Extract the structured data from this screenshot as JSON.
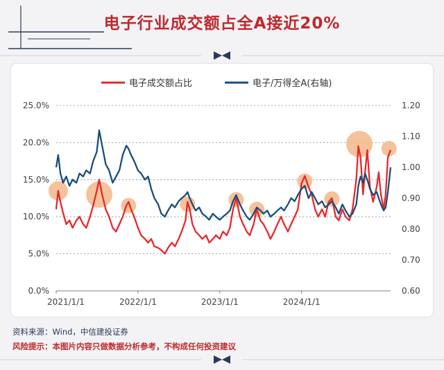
{
  "header": {
    "title": "电子行业成交额占全A接近20%"
  },
  "footer": {
    "source": "资料来源：Wind，中信建投证券",
    "risk": "风险提示：本图片内容只做数据分析参考，不构成任何投资建议"
  },
  "colors": {
    "red": "#e8272a",
    "blue": "#184d7c",
    "highlight": "#f2b98a",
    "brand": "#c0282d",
    "navy": "#2a3a5c"
  },
  "icons": [
    "bowtie-icon"
  ],
  "chart_data": {
    "type": "line",
    "title": "",
    "xlabel": "",
    "ylabel": "",
    "x_ticks": [
      "2021/1/1",
      "2022/1/1",
      "2023/1/1",
      "2024/1/1"
    ],
    "left_axis": {
      "ylim": [
        0,
        25
      ],
      "ticks": [
        "0.0%",
        "5.0%",
        "10.0%",
        "15.0%",
        "20.0%",
        "25.0%"
      ]
    },
    "right_axis": {
      "ylim": [
        0.6,
        1.2
      ],
      "ticks": [
        "0.60",
        "0.70",
        "0.80",
        "0.90",
        "1.00",
        "1.10",
        "1.20"
      ]
    },
    "grid": "dotted horizontal",
    "legend": "top",
    "series": [
      {
        "name": "电子成交额占比",
        "axis": "left",
        "color": "#e8272a",
        "points": [
          [
            "2021-01-01",
            11.0
          ],
          [
            "2021-01-10",
            13.5
          ],
          [
            "2021-01-20",
            12.0
          ],
          [
            "2021-02-01",
            10.5
          ],
          [
            "2021-02-15",
            9.0
          ],
          [
            "2021-03-01",
            9.5
          ],
          [
            "2021-03-15",
            8.5
          ],
          [
            "2021-04-01",
            9.5
          ],
          [
            "2021-04-15",
            10.0
          ],
          [
            "2021-05-01",
            9.0
          ],
          [
            "2021-05-15",
            8.5
          ],
          [
            "2021-06-01",
            10.0
          ],
          [
            "2021-06-15",
            11.5
          ],
          [
            "2021-07-01",
            13.5
          ],
          [
            "2021-07-12",
            15.0
          ],
          [
            "2021-07-25",
            13.0
          ],
          [
            "2021-08-10",
            11.0
          ],
          [
            "2021-08-25",
            10.0
          ],
          [
            "2021-09-10",
            8.5
          ],
          [
            "2021-09-25",
            8.0
          ],
          [
            "2021-10-10",
            9.0
          ],
          [
            "2021-10-25",
            10.0
          ],
          [
            "2021-11-10",
            11.5
          ],
          [
            "2021-11-20",
            12.0
          ],
          [
            "2021-12-01",
            11.0
          ],
          [
            "2021-12-15",
            10.0
          ],
          [
            "2022-01-01",
            8.5
          ],
          [
            "2022-01-15",
            7.5
          ],
          [
            "2022-02-01",
            7.0
          ],
          [
            "2022-02-15",
            6.5
          ],
          [
            "2022-03-01",
            7.0
          ],
          [
            "2022-03-15",
            6.0
          ],
          [
            "2022-04-01",
            5.8
          ],
          [
            "2022-04-15",
            5.5
          ],
          [
            "2022-05-01",
            5.0
          ],
          [
            "2022-05-15",
            5.8
          ],
          [
            "2022-06-01",
            6.5
          ],
          [
            "2022-06-15",
            6.0
          ],
          [
            "2022-07-01",
            7.0
          ],
          [
            "2022-07-15",
            8.0
          ],
          [
            "2022-08-01",
            9.5
          ],
          [
            "2022-08-10",
            12.0
          ],
          [
            "2022-08-20",
            11.0
          ],
          [
            "2022-09-01",
            9.0
          ],
          [
            "2022-09-15",
            8.0
          ],
          [
            "2022-10-01",
            7.5
          ],
          [
            "2022-10-15",
            7.0
          ],
          [
            "2022-11-01",
            7.5
          ],
          [
            "2022-11-15",
            6.5
          ],
          [
            "2022-12-01",
            7.0
          ],
          [
            "2022-12-15",
            7.5
          ],
          [
            "2023-01-01",
            7.0
          ],
          [
            "2023-01-15",
            8.0
          ],
          [
            "2023-02-01",
            7.5
          ],
          [
            "2023-02-15",
            8.5
          ],
          [
            "2023-03-01",
            11.0
          ],
          [
            "2023-03-15",
            12.5
          ],
          [
            "2023-04-01",
            10.0
          ],
          [
            "2023-04-15",
            9.0
          ],
          [
            "2023-05-01",
            8.0
          ],
          [
            "2023-05-15",
            7.5
          ],
          [
            "2023-06-01",
            9.0
          ],
          [
            "2023-06-15",
            11.0
          ],
          [
            "2023-07-01",
            9.5
          ],
          [
            "2023-07-15",
            9.0
          ],
          [
            "2023-08-01",
            8.0
          ],
          [
            "2023-08-15",
            7.0
          ],
          [
            "2023-09-01",
            8.0
          ],
          [
            "2023-09-15",
            9.0
          ],
          [
            "2023-10-01",
            10.0
          ],
          [
            "2023-10-15",
            9.0
          ],
          [
            "2023-11-01",
            8.0
          ],
          [
            "2023-11-15",
            9.0
          ],
          [
            "2023-12-01",
            10.0
          ],
          [
            "2023-12-15",
            11.0
          ],
          [
            "2024-01-01",
            14.5
          ],
          [
            "2024-01-15",
            15.5
          ],
          [
            "2024-02-01",
            14.0
          ],
          [
            "2024-02-15",
            13.0
          ],
          [
            "2024-03-01",
            11.0
          ],
          [
            "2024-03-15",
            10.0
          ],
          [
            "2024-04-01",
            11.0
          ],
          [
            "2024-04-15",
            10.0
          ],
          [
            "2024-05-01",
            12.0
          ],
          [
            "2024-05-15",
            12.5
          ],
          [
            "2024-06-01",
            10.0
          ],
          [
            "2024-06-15",
            9.5
          ],
          [
            "2024-07-01",
            11.0
          ],
          [
            "2024-07-15",
            10.0
          ],
          [
            "2024-08-01",
            9.5
          ],
          [
            "2024-08-15",
            11.0
          ],
          [
            "2024-09-01",
            15.0
          ],
          [
            "2024-09-10",
            19.5
          ],
          [
            "2024-09-20",
            18.0
          ],
          [
            "2024-10-01",
            13.0
          ],
          [
            "2024-10-10",
            16.0
          ],
          [
            "2024-10-20",
            19.0
          ],
          [
            "2024-11-01",
            14.0
          ],
          [
            "2024-11-15",
            12.0
          ],
          [
            "2024-12-01",
            14.0
          ],
          [
            "2024-12-10",
            16.0
          ],
          [
            "2024-12-20",
            13.0
          ],
          [
            "2025-01-01",
            11.0
          ],
          [
            "2025-01-10",
            13.0
          ],
          [
            "2025-01-20",
            18.0
          ],
          [
            "2025-02-01",
            19.0
          ]
        ]
      },
      {
        "name": "电子/万得全A(右轴)",
        "axis": "right",
        "color": "#184d7c",
        "points": [
          [
            "2021-01-01",
            1.0
          ],
          [
            "2021-01-10",
            1.04
          ],
          [
            "2021-01-20",
            0.98
          ],
          [
            "2021-02-01",
            0.95
          ],
          [
            "2021-02-15",
            0.97
          ],
          [
            "2021-03-01",
            0.94
          ],
          [
            "2021-03-15",
            0.96
          ],
          [
            "2021-04-01",
            0.95
          ],
          [
            "2021-04-15",
            0.98
          ],
          [
            "2021-05-01",
            0.97
          ],
          [
            "2021-05-15",
            0.99
          ],
          [
            "2021-06-01",
            0.98
          ],
          [
            "2021-06-15",
            1.02
          ],
          [
            "2021-07-01",
            1.05
          ],
          [
            "2021-07-12",
            1.12
          ],
          [
            "2021-07-25",
            1.07
          ],
          [
            "2021-08-10",
            1.01
          ],
          [
            "2021-08-25",
            0.99
          ],
          [
            "2021-09-10",
            0.95
          ],
          [
            "2021-09-25",
            0.97
          ],
          [
            "2021-10-10",
            0.99
          ],
          [
            "2021-10-25",
            1.04
          ],
          [
            "2021-11-10",
            1.07
          ],
          [
            "2021-11-20",
            1.06
          ],
          [
            "2021-12-01",
            1.04
          ],
          [
            "2021-12-15",
            1.02
          ],
          [
            "2022-01-01",
            0.99
          ],
          [
            "2022-01-15",
            0.98
          ],
          [
            "2022-02-01",
            0.96
          ],
          [
            "2022-02-15",
            0.97
          ],
          [
            "2022-03-01",
            0.93
          ],
          [
            "2022-03-15",
            0.9
          ],
          [
            "2022-04-01",
            0.88
          ],
          [
            "2022-04-15",
            0.85
          ],
          [
            "2022-05-01",
            0.84
          ],
          [
            "2022-05-15",
            0.86
          ],
          [
            "2022-06-01",
            0.88
          ],
          [
            "2022-06-15",
            0.87
          ],
          [
            "2022-07-01",
            0.89
          ],
          [
            "2022-07-15",
            0.9
          ],
          [
            "2022-08-01",
            0.91
          ],
          [
            "2022-08-10",
            0.92
          ],
          [
            "2022-08-20",
            0.9
          ],
          [
            "2022-09-01",
            0.88
          ],
          [
            "2022-09-15",
            0.86
          ],
          [
            "2022-10-01",
            0.87
          ],
          [
            "2022-10-15",
            0.85
          ],
          [
            "2022-11-01",
            0.84
          ],
          [
            "2022-11-15",
            0.83
          ],
          [
            "2022-12-01",
            0.85
          ],
          [
            "2022-12-15",
            0.84
          ],
          [
            "2023-01-01",
            0.83
          ],
          [
            "2023-01-15",
            0.84
          ],
          [
            "2023-02-01",
            0.85
          ],
          [
            "2023-02-15",
            0.86
          ],
          [
            "2023-03-01",
            0.89
          ],
          [
            "2023-03-15",
            0.91
          ],
          [
            "2023-04-01",
            0.88
          ],
          [
            "2023-04-15",
            0.86
          ],
          [
            "2023-05-01",
            0.84
          ],
          [
            "2023-05-15",
            0.83
          ],
          [
            "2023-06-01",
            0.85
          ],
          [
            "2023-06-15",
            0.87
          ],
          [
            "2023-07-01",
            0.86
          ],
          [
            "2023-07-15",
            0.85
          ],
          [
            "2023-08-01",
            0.86
          ],
          [
            "2023-08-15",
            0.84
          ],
          [
            "2023-09-01",
            0.85
          ],
          [
            "2023-09-15",
            0.86
          ],
          [
            "2023-10-01",
            0.87
          ],
          [
            "2023-10-15",
            0.86
          ],
          [
            "2023-11-01",
            0.88
          ],
          [
            "2023-11-15",
            0.9
          ],
          [
            "2023-12-01",
            0.89
          ],
          [
            "2023-12-15",
            0.91
          ],
          [
            "2024-01-01",
            0.93
          ],
          [
            "2024-01-15",
            0.94
          ],
          [
            "2024-02-01",
            0.9
          ],
          [
            "2024-02-15",
            0.92
          ],
          [
            "2024-03-01",
            0.9
          ],
          [
            "2024-03-15",
            0.88
          ],
          [
            "2024-04-01",
            0.89
          ],
          [
            "2024-04-15",
            0.87
          ],
          [
            "2024-05-01",
            0.88
          ],
          [
            "2024-05-15",
            0.89
          ],
          [
            "2024-06-01",
            0.87
          ],
          [
            "2024-06-15",
            0.85
          ],
          [
            "2024-07-01",
            0.88
          ],
          [
            "2024-07-15",
            0.86
          ],
          [
            "2024-08-01",
            0.84
          ],
          [
            "2024-08-15",
            0.85
          ],
          [
            "2024-09-01",
            0.88
          ],
          [
            "2024-09-10",
            0.94
          ],
          [
            "2024-09-20",
            0.97
          ],
          [
            "2024-10-01",
            0.95
          ],
          [
            "2024-10-10",
            0.98
          ],
          [
            "2024-10-20",
            0.96
          ],
          [
            "2024-11-01",
            0.93
          ],
          [
            "2024-11-15",
            0.91
          ],
          [
            "2024-12-01",
            0.92
          ],
          [
            "2024-12-10",
            0.9
          ],
          [
            "2024-12-20",
            0.88
          ],
          [
            "2025-01-01",
            0.86
          ],
          [
            "2025-01-10",
            0.87
          ],
          [
            "2025-01-20",
            0.92
          ],
          [
            "2025-02-01",
            1.0
          ]
        ]
      }
    ],
    "highlights": [
      {
        "date": "2021-01-10",
        "value": 13.5,
        "size": "medium"
      },
      {
        "date": "2021-07-12",
        "value": 13.0,
        "size": "large"
      },
      {
        "date": "2021-11-20",
        "value": 11.5,
        "size": "small"
      },
      {
        "date": "2022-08-10",
        "value": 11.7,
        "size": "small"
      },
      {
        "date": "2023-03-15",
        "value": 12.3,
        "size": "small"
      },
      {
        "date": "2023-06-15",
        "value": 11.0,
        "size": "small"
      },
      {
        "date": "2024-01-15",
        "value": 14.8,
        "size": "small"
      },
      {
        "date": "2024-05-15",
        "value": 12.4,
        "size": "small"
      },
      {
        "date": "2024-09-15",
        "value": 19.8,
        "size": "large"
      },
      {
        "date": "2025-01-25",
        "value": 19.2,
        "size": "small"
      }
    ]
  }
}
